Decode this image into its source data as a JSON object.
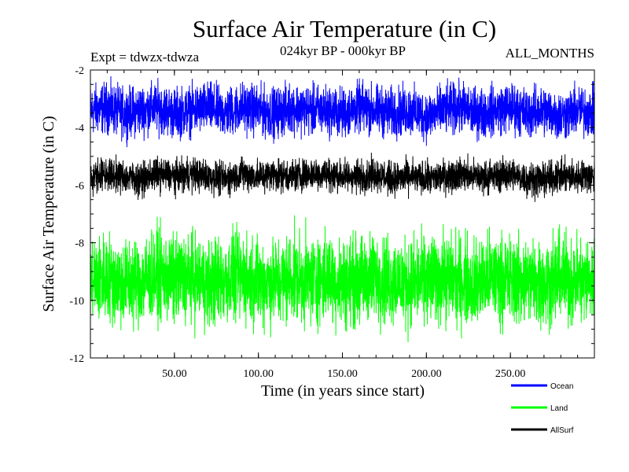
{
  "chart_data": {
    "type": "line",
    "title": "Surface Air Temperature (in C)",
    "subtitle_left": "Expt = tdwzx-tdwza",
    "subtitle_center": "024kyr BP - 000kyr BP",
    "subtitle_right": "ALL_MONTHS",
    "xlabel": "Time (in years since start)",
    "ylabel": "Surface Air Temperature (in C)",
    "xlim": [
      0,
      300
    ],
    "ylim": [
      -12,
      -2
    ],
    "xticks": [
      50,
      100,
      150,
      200,
      250
    ],
    "xtick_labels": [
      "50.00",
      "100.00",
      "150.00",
      "200.00",
      "250.00"
    ],
    "yticks": [
      -12,
      -10,
      -8,
      -6,
      -4,
      -2
    ],
    "ytick_labels": [
      "-12",
      "-10",
      "-8",
      "-6",
      "-4",
      "-2"
    ],
    "grid": false,
    "legend_position": "bottom-right",
    "x": [
      0,
      10,
      20,
      30,
      40,
      50,
      60,
      70,
      80,
      90,
      100,
      110,
      120,
      130,
      140,
      150,
      160,
      170,
      180,
      190,
      200,
      210,
      220,
      230,
      240,
      250,
      260,
      270,
      280,
      290,
      300
    ],
    "series": [
      {
        "name": "Ocean",
        "color": "#0000ff",
        "values": [
          -3.4,
          -3.3,
          -3.5,
          -3.4,
          -3.3,
          -3.5,
          -3.4,
          -3.3,
          -3.5,
          -3.3,
          -3.4,
          -3.5,
          -3.3,
          -3.4,
          -3.4,
          -3.5,
          -3.3,
          -3.4,
          -3.5,
          -3.4,
          -3.6,
          -3.4,
          -3.3,
          -3.5,
          -3.4,
          -3.3,
          -3.5,
          -3.4,
          -3.6,
          -3.4,
          -3.5
        ]
      },
      {
        "name": "Land",
        "color": "#00ff00",
        "values": [
          -9.3,
          -9.2,
          -9.4,
          -9.3,
          -9.1,
          -9.3,
          -9.2,
          -9.4,
          -9.3,
          -9.2,
          -9.3,
          -9.4,
          -9.2,
          -9.3,
          -9.2,
          -9.4,
          -9.3,
          -9.2,
          -9.3,
          -9.4,
          -9.3,
          -9.2,
          -9.3,
          -9.4,
          -9.2,
          -9.3,
          -9.3,
          -9.4,
          -9.2,
          -9.3,
          -9.3
        ]
      },
      {
        "name": "AllSurf",
        "color": "#000000",
        "values": [
          -5.7,
          -5.6,
          -5.7,
          -5.8,
          -5.6,
          -5.7,
          -5.6,
          -5.7,
          -5.8,
          -5.6,
          -5.7,
          -5.6,
          -5.7,
          -5.6,
          -5.6,
          -5.7,
          -5.7,
          -5.6,
          -5.8,
          -5.7,
          -5.8,
          -5.7,
          -5.6,
          -5.7,
          -5.7,
          -5.6,
          -5.8,
          -5.8,
          -5.7,
          -5.7,
          -5.7
        ]
      }
    ]
  }
}
